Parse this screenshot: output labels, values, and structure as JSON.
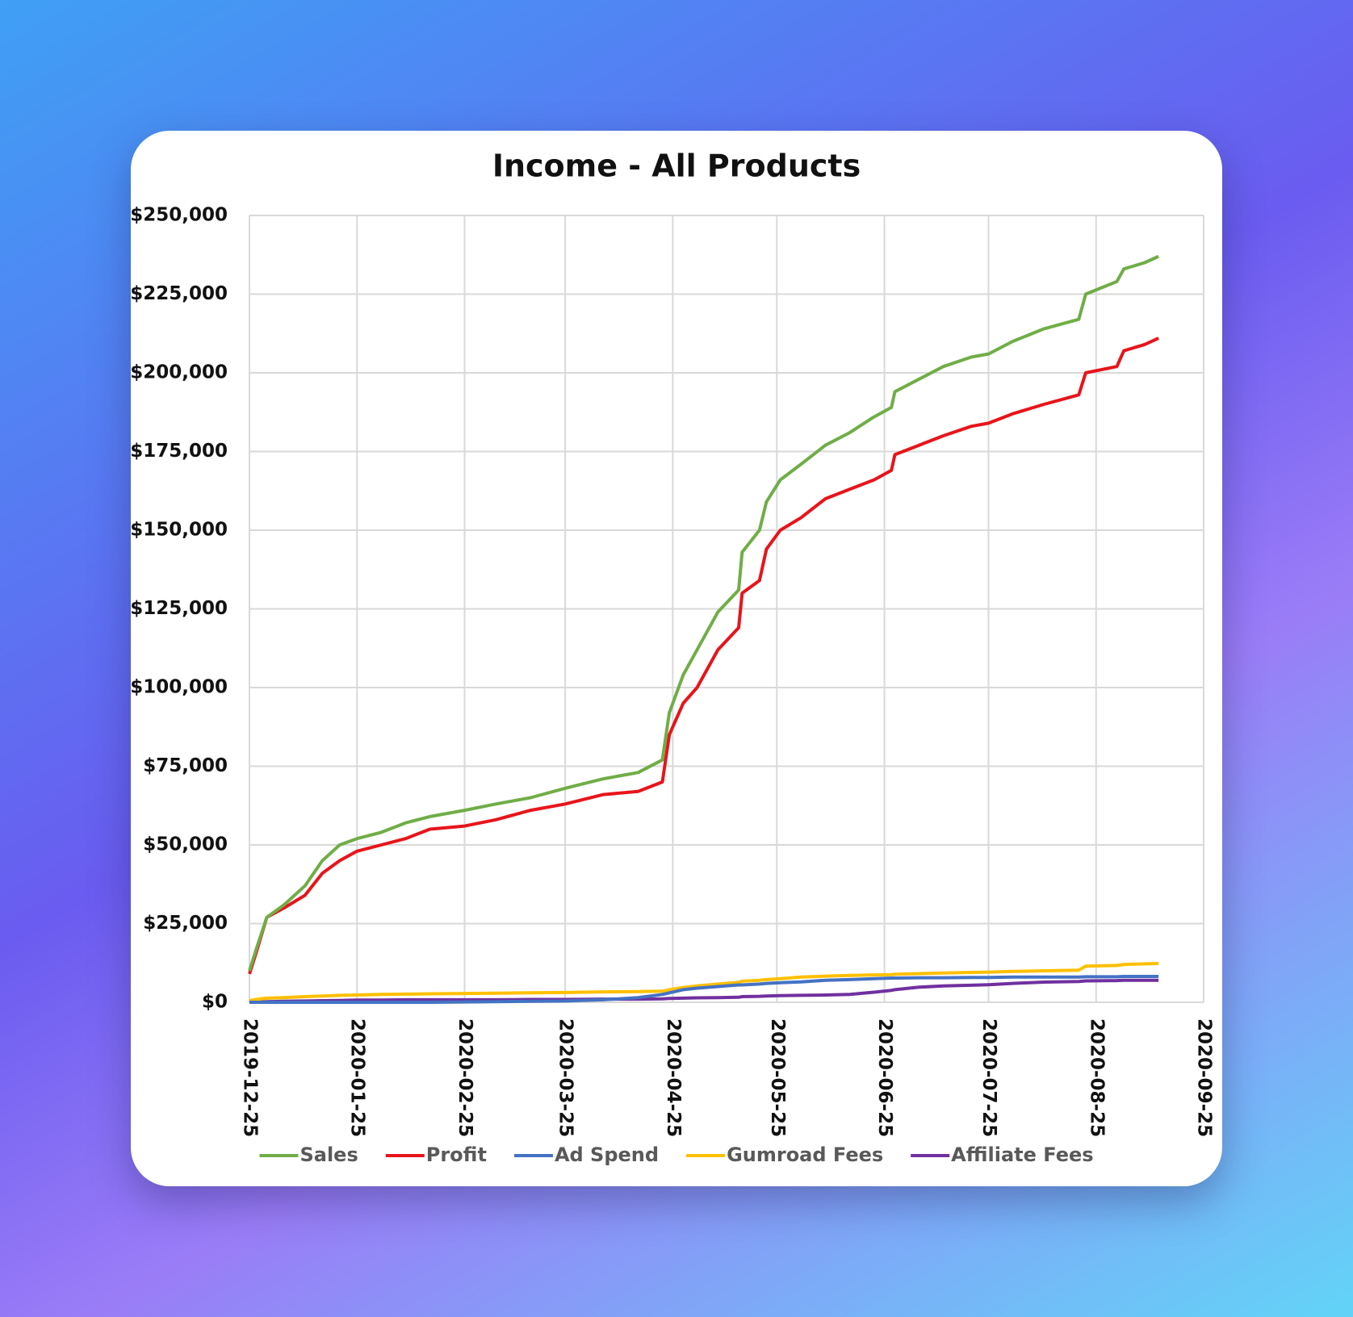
{
  "chart_data": {
    "type": "line",
    "title": "Income - All Products",
    "x": [
      "2019-12-25",
      "2019-12-27",
      "2019-12-30",
      "2020-01-04",
      "2020-01-10",
      "2020-01-15",
      "2020-01-20",
      "2020-01-25",
      "2020-02-01",
      "2020-02-08",
      "2020-02-15",
      "2020-02-25",
      "2020-03-05",
      "2020-03-15",
      "2020-03-25",
      "2020-04-05",
      "2020-04-15",
      "2020-04-22",
      "2020-04-24",
      "2020-04-28",
      "2020-05-02",
      "2020-05-08",
      "2020-05-14",
      "2020-05-15",
      "2020-05-20",
      "2020-05-22",
      "2020-05-26",
      "2020-06-01",
      "2020-06-08",
      "2020-06-15",
      "2020-06-22",
      "2020-06-27",
      "2020-06-28",
      "2020-07-05",
      "2020-07-12",
      "2020-07-20",
      "2020-07-25",
      "2020-08-01",
      "2020-08-10",
      "2020-08-20",
      "2020-08-22",
      "2020-08-31",
      "2020-09-02",
      "2020-09-08",
      "2020-09-12"
    ],
    "series": [
      {
        "name": "Sales",
        "color": "#70ad47",
        "values": [
          10000,
          17000,
          27000,
          31000,
          37000,
          45000,
          50000,
          52000,
          54000,
          57000,
          59000,
          61000,
          63000,
          65000,
          68000,
          71000,
          73000,
          77000,
          92000,
          104000,
          112000,
          124000,
          131000,
          143000,
          150000,
          159000,
          166000,
          171000,
          177000,
          181000,
          186000,
          189000,
          194000,
          198000,
          202000,
          205000,
          206000,
          210000,
          214000,
          217000,
          225000,
          229000,
          233000,
          235000,
          237000
        ]
      },
      {
        "name": "Profit",
        "color": "#e8141b",
        "values": [
          9000,
          16000,
          27000,
          30000,
          34000,
          41000,
          45000,
          48000,
          50000,
          52000,
          55000,
          56000,
          58000,
          61000,
          63000,
          66000,
          67000,
          70000,
          85000,
          95000,
          100000,
          112000,
          119000,
          130000,
          134000,
          144000,
          150000,
          154000,
          160000,
          163000,
          166000,
          169000,
          174000,
          177000,
          180000,
          183000,
          184000,
          187000,
          190000,
          193000,
          200000,
          202000,
          207000,
          209000,
          211000
        ]
      },
      {
        "name": "Ad Spend",
        "color": "#4472c4",
        "values": [
          0,
          0,
          0,
          0,
          0,
          0,
          0,
          0,
          0,
          0,
          0,
          100,
          200,
          300,
          400,
          800,
          1500,
          2500,
          3000,
          4000,
          4500,
          5000,
          5500,
          5500,
          5800,
          6000,
          6200,
          6500,
          7000,
          7200,
          7500,
          7700,
          7700,
          7800,
          7800,
          7900,
          7900,
          8000,
          8000,
          8000,
          8100,
          8100,
          8200,
          8200,
          8200
        ]
      },
      {
        "name": "Gumroad Fees",
        "color": "#ffc000",
        "values": [
          500,
          900,
          1300,
          1500,
          1800,
          2000,
          2200,
          2300,
          2500,
          2600,
          2700,
          2800,
          2900,
          3000,
          3100,
          3300,
          3400,
          3500,
          4000,
          4700,
          5200,
          5800,
          6300,
          6700,
          7000,
          7200,
          7500,
          8000,
          8300,
          8500,
          8700,
          8800,
          8900,
          9100,
          9300,
          9500,
          9600,
          9800,
          10000,
          10200,
          11500,
          11700,
          12000,
          12200,
          12300
        ]
      },
      {
        "name": "Affiliate Fees",
        "color": "#7030a0",
        "values": [
          0,
          100,
          200,
          300,
          400,
          500,
          600,
          700,
          700,
          800,
          800,
          800,
          800,
          900,
          900,
          1000,
          1000,
          1100,
          1200,
          1300,
          1400,
          1500,
          1600,
          1800,
          1900,
          2000,
          2100,
          2200,
          2300,
          2500,
          3200,
          3800,
          4000,
          4800,
          5200,
          5400,
          5600,
          6000,
          6400,
          6600,
          6800,
          6900,
          7000,
          7000,
          7000
        ]
      }
    ],
    "xlim": [
      "2019-12-25",
      "2020-09-25"
    ],
    "xticks": [
      "2019-12-25",
      "2020-01-25",
      "2020-02-25",
      "2020-03-25",
      "2020-04-25",
      "2020-05-25",
      "2020-06-25",
      "2020-07-25",
      "2020-08-25",
      "2020-09-25"
    ],
    "ylim": [
      0,
      250000
    ],
    "yticks": [
      {
        "value": 0,
        "label": "$0"
      },
      {
        "value": 25000,
        "label": "$25,000"
      },
      {
        "value": 50000,
        "label": "$50,000"
      },
      {
        "value": 75000,
        "label": "$75,000"
      },
      {
        "value": 100000,
        "label": "$100,000"
      },
      {
        "value": 125000,
        "label": "$125,000"
      },
      {
        "value": 150000,
        "label": "$150,000"
      },
      {
        "value": 175000,
        "label": "$175,000"
      },
      {
        "value": 200000,
        "label": "$200,000"
      },
      {
        "value": 225000,
        "label": "$225,000"
      },
      {
        "value": 250000,
        "label": "$250,000"
      }
    ],
    "grid": true,
    "legend": "bottom"
  }
}
